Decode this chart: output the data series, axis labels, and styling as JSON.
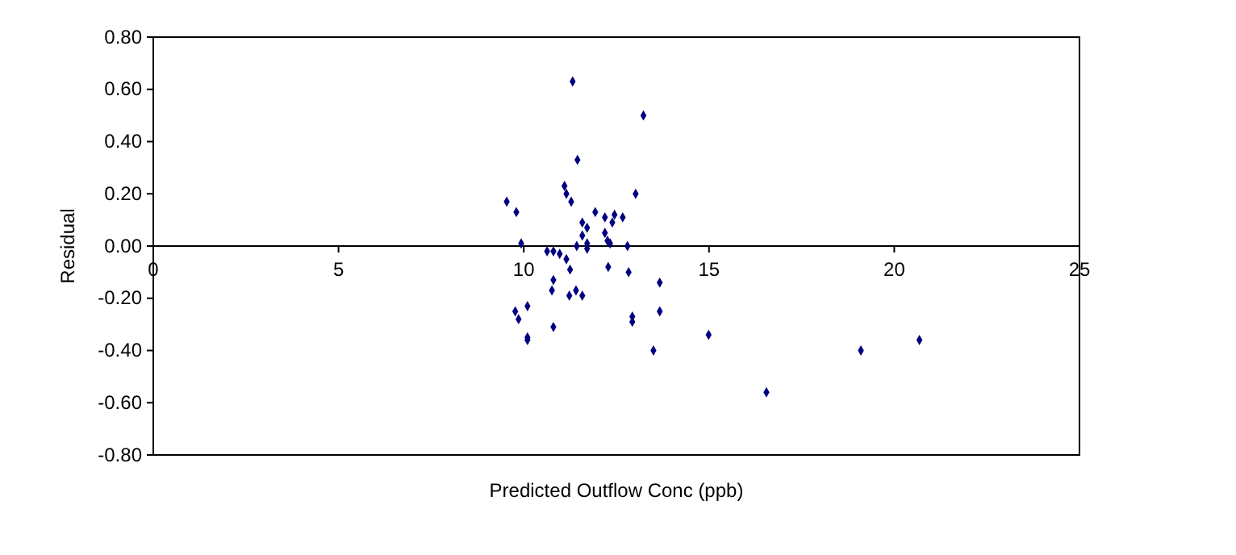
{
  "chart_data": {
    "type": "scatter",
    "xlabel": "Predicted Outflow Conc (ppb)",
    "ylabel": "Residual",
    "xlim": [
      0,
      25
    ],
    "xticks": [
      0,
      5,
      10,
      15,
      20,
      25
    ],
    "ylim": [
      -0.8,
      0.8
    ],
    "yticks": [
      {
        "value": -0.8,
        "label": "-0.80"
      },
      {
        "value": -0.6,
        "label": "-0.60"
      },
      {
        "value": -0.4,
        "label": "-0.40"
      },
      {
        "value": -0.2,
        "label": "-0.20"
      },
      {
        "value": 0,
        "label": "0.00"
      },
      {
        "value": 0.2,
        "label": "0.20"
      },
      {
        "value": 0.4,
        "label": "0.40"
      },
      {
        "value": 0.6,
        "label": "0.60"
      },
      {
        "value": 0.8,
        "label": "0.80"
      }
    ],
    "grid": false,
    "marker": "diamond",
    "series": [
      {
        "color": "#000080",
        "x": [
          11.32,
          13.23,
          11.45,
          11.1,
          11.15,
          11.28,
          9.54,
          9.8,
          13.02,
          11.93,
          12.45,
          12.67,
          12.19,
          12.39,
          11.58,
          11.71,
          11.58,
          12.19,
          12.26,
          12.33,
          9.93,
          11.71,
          11.43,
          11.71,
          12.8,
          10.63,
          10.8,
          10.97,
          11.15,
          12.28,
          11.25,
          12.83,
          13.67,
          10.8,
          10.76,
          11.41,
          11.23,
          11.58,
          10.1,
          9.77,
          13.67,
          9.86,
          12.93,
          12.93,
          10.8,
          10.1,
          10.1,
          13.5,
          14.99,
          16.55,
          19.1,
          20.68
        ],
        "values": [
          0.63,
          0.5,
          0.33,
          0.23,
          0.2,
          0.17,
          0.17,
          0.13,
          0.2,
          0.13,
          0.12,
          0.11,
          0.11,
          0.09,
          0.09,
          0.07,
          0.04,
          0.05,
          0.02,
          0.01,
          0.01,
          0.01,
          0,
          -0.01,
          0,
          -0.02,
          -0.02,
          -0.03,
          -0.05,
          -0.08,
          -0.09,
          -0.1,
          -0.14,
          -0.13,
          -0.17,
          -0.17,
          -0.19,
          -0.19,
          -0.23,
          -0.25,
          -0.25,
          -0.28,
          -0.27,
          -0.29,
          -0.31,
          -0.35,
          -0.36,
          -0.4,
          -0.34,
          -0.56,
          -0.4,
          -0.36
        ]
      }
    ]
  }
}
